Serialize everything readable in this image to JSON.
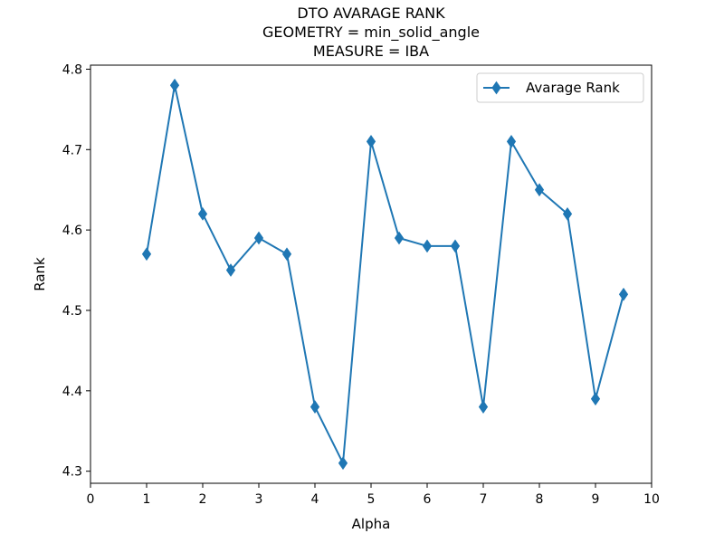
{
  "chart_data": {
    "type": "line",
    "title_lines": [
      "DTO AVARAGE RANK",
      "GEOMETRY = min_solid_angle",
      "MEASURE = IBA"
    ],
    "xlabel": "Alpha",
    "ylabel": "Rank",
    "xlim": [
      0,
      10
    ],
    "ylim": [
      4.285,
      4.805
    ],
    "x_ticks": [
      0,
      1,
      2,
      3,
      4,
      5,
      6,
      7,
      8,
      9,
      10
    ],
    "x_tick_labels": [
      "0",
      "1",
      "2",
      "3",
      "4",
      "5",
      "6",
      "7",
      "8",
      "9",
      "10"
    ],
    "y_ticks": [
      4.3,
      4.4,
      4.5,
      4.6,
      4.7,
      4.8
    ],
    "y_tick_labels": [
      "4.3",
      "4.4",
      "4.5",
      "4.6",
      "4.7",
      "4.8"
    ],
    "grid": false,
    "legend_position": "top-right",
    "series": [
      {
        "name": "Avarage Rank",
        "color": "#1f77b4",
        "marker": "thin-diamond",
        "x": [
          1,
          1.5,
          2,
          2.5,
          3,
          3.5,
          4,
          4.5,
          5,
          5.5,
          6,
          6.5,
          7,
          7.5,
          8,
          8.5,
          9,
          9.5
        ],
        "y": [
          4.57,
          4.78,
          4.62,
          4.55,
          4.59,
          4.57,
          4.38,
          4.31,
          4.71,
          4.59,
          4.58,
          4.58,
          4.38,
          4.71,
          4.65,
          4.62,
          4.39,
          4.52
        ]
      }
    ]
  }
}
